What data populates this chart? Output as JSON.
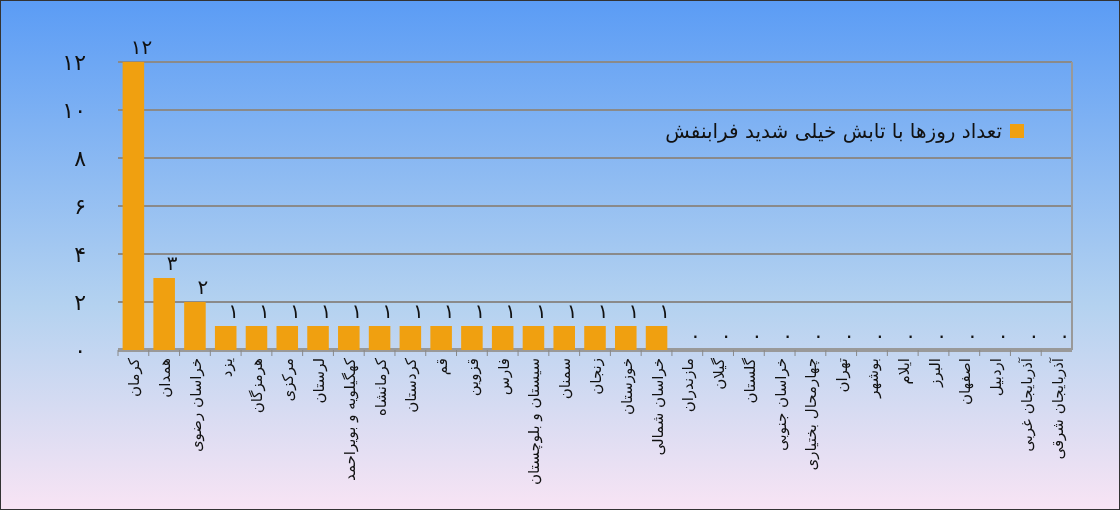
{
  "chart_data": {
    "type": "bar",
    "categories": [
      "کرمان",
      "همدان",
      "خراسان رضوی",
      "یزد",
      "هرمزگان",
      "مرکزی",
      "لرستان",
      "کهگیلویه و بویراحمد",
      "کرمانشاه",
      "کردستان",
      "قم",
      "قزوین",
      "فارس",
      "سیستان و بلوچستان",
      "سمنان",
      "زنجان",
      "خوزستان",
      "خراسان شمالی",
      "مازندران",
      "گیلان",
      "گلستان",
      "خراسان جنوبی",
      "چهارمحال بختیاری",
      "تهران",
      "بوشهر",
      "ایلام",
      "البرز",
      "اصفهان",
      "اردبیل",
      "آذربایجان غربی",
      "آذربایجان شرقی"
    ],
    "series": [
      {
        "name": "تعداد روزها با تابش خیلی شدید فرابنفش",
        "color": "#f0a010",
        "values": [
          12,
          3,
          2,
          1,
          1,
          1,
          1,
          1,
          1,
          1,
          1,
          1,
          1,
          1,
          1,
          1,
          1,
          1,
          0,
          0,
          0,
          0,
          0,
          0,
          0,
          0,
          0,
          0,
          0,
          0,
          0
        ],
        "value_labels": [
          "۱۲",
          "۳",
          "۲",
          "۱",
          "۱",
          "۱",
          "۱",
          "۱",
          "۱",
          "۱",
          "۱",
          "۱",
          "۱",
          "۱",
          "۱",
          "۱",
          "۱",
          "۱",
          "۰",
          "۰",
          "۰",
          "۰",
          "۰",
          "۰",
          "۰",
          "۰",
          "۰",
          "۰",
          "۰",
          "۰",
          "۰"
        ]
      }
    ],
    "ylim": [
      0,
      12
    ],
    "yticks": [
      {
        "value": 0,
        "label": "۰"
      },
      {
        "value": 2,
        "label": "۲"
      },
      {
        "value": 4,
        "label": "۴"
      },
      {
        "value": 6,
        "label": "۶"
      },
      {
        "value": 8,
        "label": "۸"
      },
      {
        "value": 10,
        "label": "۱۰"
      },
      {
        "value": 12,
        "label": "۱۲"
      }
    ],
    "grid": "y",
    "legend": "top right"
  }
}
